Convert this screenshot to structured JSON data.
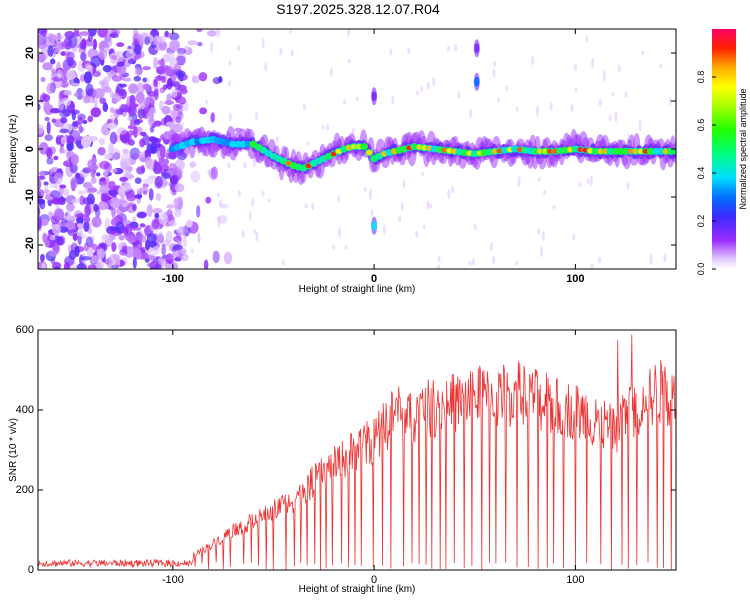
{
  "title": "S197.2025.328.12.07.R04",
  "chart_data": [
    {
      "type": "heatmap",
      "xlabel": "Height of straight line (km)",
      "ylabel": "Frequency (Hz)",
      "xlim": [
        -167,
        150
      ],
      "ylim": [
        -25,
        25
      ],
      "x_ticks": [
        -100,
        0,
        100
      ],
      "x_tick_labels": [
        "-100",
        "0",
        "100"
      ],
      "y_ticks": [
        -20,
        -10,
        0,
        10,
        20
      ],
      "y_tick_labels": [
        "-20",
        "-10",
        "0",
        "10",
        "20"
      ],
      "colorbar": {
        "label": "Normalized spectral amplitude",
        "range": [
          0,
          1
        ],
        "ticks": [
          0.0,
          0.2,
          0.4,
          0.6,
          0.8
        ],
        "tick_labels": [
          "0.0",
          "0.2",
          "0.4",
          "0.6",
          "0.8"
        ]
      },
      "ridge": {
        "description": "dominant frequency line",
        "x": [
          -100,
          -90,
          -80,
          -70,
          -60,
          -50,
          -45,
          -40,
          -35,
          -30,
          -25,
          -20,
          -15,
          -10,
          -5,
          0,
          5,
          10,
          15,
          20,
          30,
          40,
          50,
          60,
          70,
          80,
          90,
          100,
          110,
          120,
          130,
          140,
          150
        ],
        "y": [
          0,
          1.5,
          2,
          1,
          1,
          -1.5,
          -2.5,
          -3.5,
          -4,
          -3,
          -2,
          -1,
          0,
          0.5,
          0.5,
          -2,
          -1,
          -0.5,
          0,
          0.5,
          0,
          -0.5,
          -1,
          -0.5,
          0,
          -0.5,
          -0.5,
          0,
          -0.5,
          -0.5,
          -0.5,
          -0.5,
          -0.5
        ],
        "peak_amplitude": 0.95
      },
      "features": [
        {
          "x": 0,
          "y": -16,
          "amplitude": 0.4
        },
        {
          "x": 0,
          "y": 11,
          "amplitude": 0.15
        },
        {
          "x": 51,
          "y": 14,
          "amplitude": 0.3
        },
        {
          "x": 51,
          "y": 21,
          "amplitude": 0.15
        }
      ]
    },
    {
      "type": "line",
      "xlabel": "Height of straight line (km)",
      "ylabel": "SNR (10 * v/v)",
      "xlim": [
        -167,
        150
      ],
      "ylim": [
        0,
        600
      ],
      "x_ticks": [
        -100,
        0,
        100
      ],
      "x_tick_labels": [
        "-100",
        "0",
        "100"
      ],
      "y_ticks": [
        0,
        200,
        400,
        600
      ],
      "y_tick_labels": [
        "0",
        "200",
        "400",
        "600"
      ],
      "series": [
        {
          "name": "SNR",
          "color": "#ee3333",
          "envelope_x": [
            -167,
            -120,
            -100,
            -90,
            -80,
            -70,
            -60,
            -50,
            -40,
            -30,
            -20,
            -10,
            0,
            10,
            20,
            30,
            40,
            50,
            60,
            70,
            80,
            90,
            100,
            110,
            120,
            130,
            140,
            150
          ],
          "envelope_y": [
            15,
            15,
            18,
            40,
            70,
            110,
            130,
            160,
            190,
            240,
            280,
            320,
            350,
            420,
            420,
            440,
            450,
            470,
            460,
            480,
            460,
            440,
            430,
            400,
            380,
            440,
            480,
            480
          ],
          "peak_value": 600
        }
      ]
    }
  ],
  "colors": {
    "line": "#ee3333",
    "frame": "#000000"
  }
}
